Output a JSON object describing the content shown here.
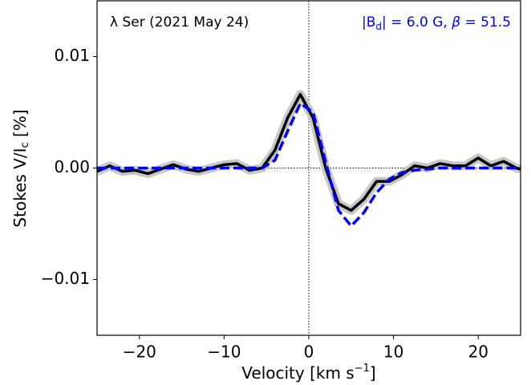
{
  "chart_data": {
    "type": "line",
    "ylabel_parts": [
      "Stokes V/I",
      "c",
      " [%]"
    ],
    "xlabel_parts": [
      "Velocity [km s",
      "−1",
      "]"
    ],
    "annotation_left": "λ Ser (2021 May 24)",
    "annotation_right_parts": [
      "|B",
      "d",
      "| = 6.0 G, ",
      "β",
      " = 51.5"
    ],
    "annotation_right_color": "#0000ff",
    "xlim": [
      -25,
      25
    ],
    "ylim": [
      -0.015,
      0.015
    ],
    "xticks": [
      {
        "value": -20,
        "label": "−20"
      },
      {
        "value": -10,
        "label": "−10"
      },
      0,
      10,
      20
    ],
    "yticks": [
      {
        "value": -0.01,
        "label": "−0.01"
      },
      {
        "value": 0,
        "label": "0.00"
      },
      0.01
    ],
    "zero_lines": true,
    "x": [
      -25,
      -23.5,
      -22,
      -20.5,
      -19,
      -17.5,
      -16,
      -14.5,
      -13,
      -11.5,
      -10,
      -8.5,
      -7,
      -5.5,
      -4,
      -2.5,
      -1,
      0.5,
      2,
      3.5,
      5,
      6.5,
      8,
      9.5,
      11,
      12.5,
      14,
      15.5,
      17,
      18.5,
      20,
      21.5,
      23,
      24.5,
      25
    ],
    "series": [
      {
        "color": "#000000",
        "dashed": false,
        "band_color": "#c8c8c8",
        "values": [
          -0.0003,
          0.0002,
          -0.0003,
          -0.0002,
          -0.0005,
          -0.0001,
          0.0003,
          -0.0001,
          -0.0003,
          0.0,
          0.0003,
          0.0004,
          -0.0002,
          0.0,
          0.0016,
          0.0045,
          0.0066,
          0.0045,
          0.0,
          -0.0032,
          -0.0038,
          -0.0028,
          -0.0012,
          -0.0012,
          -0.0006,
          0.0002,
          0.0,
          0.0004,
          0.0002,
          0.0002,
          0.0009,
          0.0002,
          0.0006,
          0.0,
          -0.0001
        ]
      },
      {
        "color": "#0000ff",
        "dashed": true,
        "values": [
          0,
          0,
          0,
          0,
          0,
          0,
          0,
          0,
          0,
          0,
          0,
          0,
          0,
          0.0,
          0.0007,
          0.0033,
          0.0058,
          0.005,
          0.0005,
          -0.0038,
          -0.0052,
          -0.004,
          -0.0022,
          -0.001,
          -0.0004,
          -0.0002,
          -0.0001,
          0,
          0,
          0,
          0,
          0,
          0,
          0,
          0
        ]
      }
    ]
  }
}
